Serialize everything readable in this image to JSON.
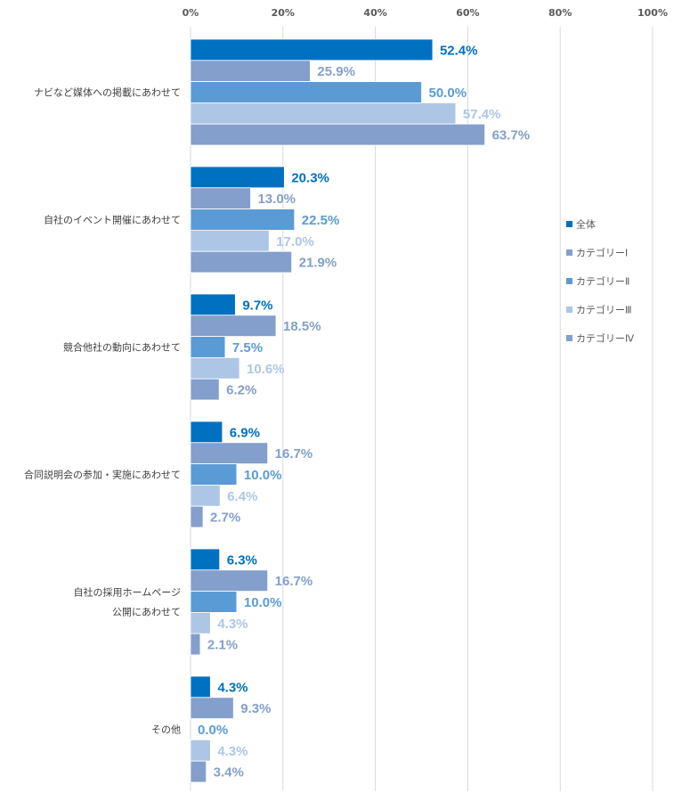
{
  "chart_data": {
    "type": "bar",
    "orientation": "horizontal",
    "categories": [
      [
        "ナビなど媒体への掲載にあわせて"
      ],
      [
        "自社のイベント開催にあわせて"
      ],
      [
        "競合他社の動向にあわせて"
      ],
      [
        "合同説明会の参加・実施にあわせて"
      ],
      [
        "自社の採用ホームページ",
        "公開にあわせて"
      ],
      [
        "その他"
      ]
    ],
    "series": [
      {
        "name": "全体",
        "color": "#0070C0",
        "values": [
          52.4,
          20.3,
          9.7,
          6.9,
          6.3,
          4.3
        ]
      },
      {
        "name": "カテゴリーⅠ",
        "color": "#849FCB",
        "values": [
          25.9,
          13.0,
          18.5,
          16.7,
          16.7,
          9.3
        ]
      },
      {
        "name": "カテゴリーⅡ",
        "color": "#5B9BD5",
        "values": [
          50.0,
          22.5,
          7.5,
          10.0,
          10.0,
          0.0
        ]
      },
      {
        "name": "カテゴリーⅢ",
        "color": "#ADC6E6",
        "values": [
          57.4,
          17.0,
          10.6,
          6.4,
          4.3,
          4.3
        ]
      },
      {
        "name": "カテゴリーⅣ",
        "color": "#849FCB",
        "values": [
          63.7,
          21.9,
          6.2,
          2.7,
          2.1,
          3.4
        ]
      }
    ],
    "xlim": [
      0,
      100
    ],
    "xticks": [
      "0%",
      "20%",
      "40%",
      "60%",
      "80%",
      "100%"
    ],
    "tick_values": [
      0,
      20,
      40,
      60,
      80,
      100
    ],
    "grid": true,
    "legend_position": "right",
    "data_labels": true
  }
}
